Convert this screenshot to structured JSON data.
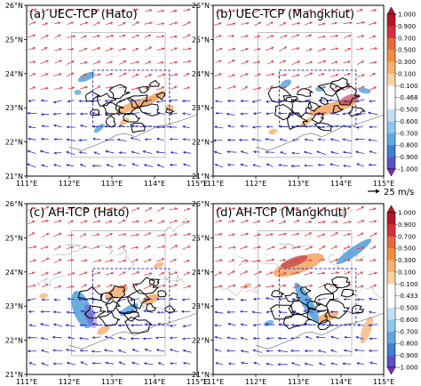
{
  "panels": [
    {
      "title": "(a) UEC-TCP (Hato)",
      "case": "hato",
      "kind": "uec"
    },
    {
      "title": "(b) UEC-TCP (Mangkhut)",
      "case": "mangkhut",
      "kind": "uec"
    },
    {
      "title": "(c) AH-TCP (Hato)",
      "case": "hato",
      "kind": "ah"
    },
    {
      "title": "(d) AH-TCP (Mangkhut)",
      "case": "mangkhut",
      "kind": "ah"
    }
  ],
  "axes": {
    "lon_range": [
      111,
      115
    ],
    "lat_range": [
      21,
      26
    ],
    "lon_ticks": [
      "111°E",
      "112°E",
      "113°E",
      "114°E",
      "115°E"
    ],
    "lat_ticks": [
      "21°N",
      "22°N",
      "23°N",
      "24°N",
      "25°N",
      "26°N"
    ]
  },
  "wind_reference": {
    "label": "25 m/s"
  },
  "colorbars": [
    {
      "ticks": [
        "1.000",
        "0.900",
        "0.700",
        "0.500",
        "0.300",
        "0.100",
        "-0.100",
        "-0.468",
        "-0.500",
        "-0.600",
        "-0.700",
        "-0.800",
        "-0.900",
        "-1.000"
      ]
    },
    {
      "ticks": [
        "1.000",
        "0.900",
        "0.700",
        "0.500",
        "0.300",
        "0.100",
        "-0.100",
        "-0.433",
        "-0.500",
        "-0.600",
        "-0.700",
        "-0.800",
        "-0.900",
        "-1.000"
      ]
    }
  ],
  "colors": {
    "positive_high": "#b2182b",
    "positive_mid": "#f4a460",
    "negative_mid": "#4f9fd8",
    "negative_high": "#7b2cbf",
    "wind_north": "#e8434c",
    "wind_south": "#2b2fd9",
    "subdomain_box": "#3030c0"
  }
}
